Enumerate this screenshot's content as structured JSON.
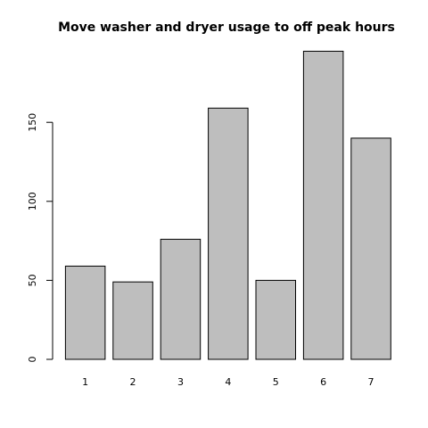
{
  "chart_data": {
    "type": "bar",
    "title": "Move washer and dryer usage to off peak hours",
    "xlabel": "",
    "ylabel": "",
    "categories": [
      "1",
      "2",
      "3",
      "4",
      "5",
      "6",
      "7"
    ],
    "values": [
      59,
      49,
      76,
      159,
      50,
      195,
      140
    ],
    "ylim": [
      0,
      200
    ],
    "yticks": [
      0,
      50,
      100,
      150
    ],
    "bar_color": "#bebebe",
    "grid": false,
    "legend": "none"
  }
}
